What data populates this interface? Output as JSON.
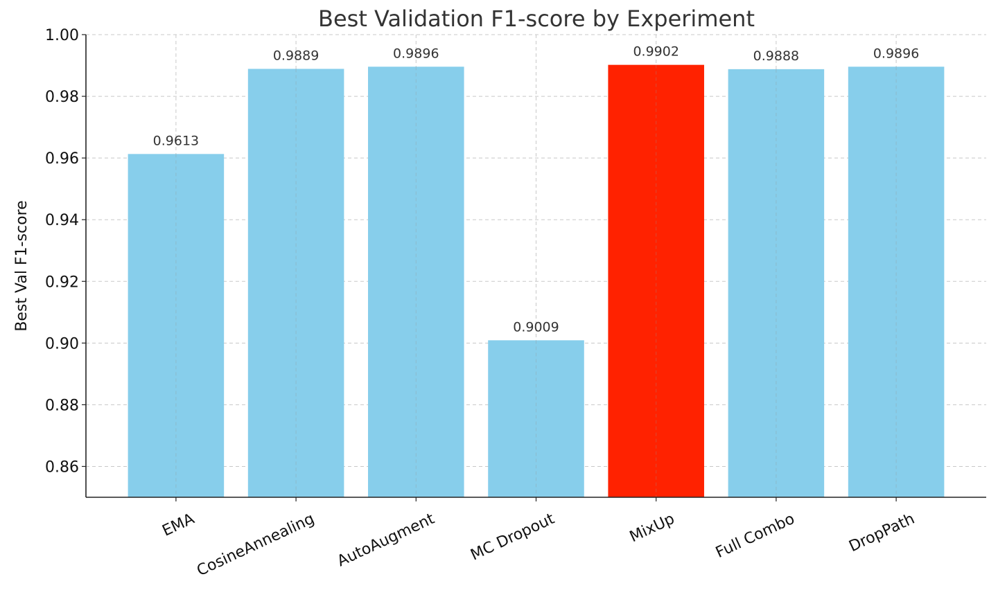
{
  "chart_data": {
    "type": "bar",
    "title": "Best Validation F1-score by Experiment",
    "xlabel": "",
    "ylabel": "Best Val F1-score",
    "categories": [
      "EMA",
      "CosineAnnealing",
      "AutoAugment",
      "MC Dropout",
      "MixUp",
      "Full Combo",
      "DropPath"
    ],
    "values": [
      0.9613,
      0.9889,
      0.9896,
      0.9009,
      0.9902,
      0.9888,
      0.9896
    ],
    "value_labels": [
      "0.9613",
      "0.9889",
      "0.9896",
      "0.9009",
      "0.9902",
      "0.9888",
      "0.9896"
    ],
    "ylim": [
      0.85,
      1.0
    ],
    "yticks": [
      0.86,
      0.88,
      0.9,
      0.92,
      0.94,
      0.96,
      0.98,
      1.0
    ],
    "ytick_labels": [
      "0.86",
      "0.88",
      "0.90",
      "0.92",
      "0.94",
      "0.96",
      "0.98",
      "1.00"
    ],
    "grid": true,
    "colors": {
      "default_bar": "#87CEEB",
      "highlight_bar": "#FF2200"
    },
    "highlight_category": "MixUp"
  }
}
